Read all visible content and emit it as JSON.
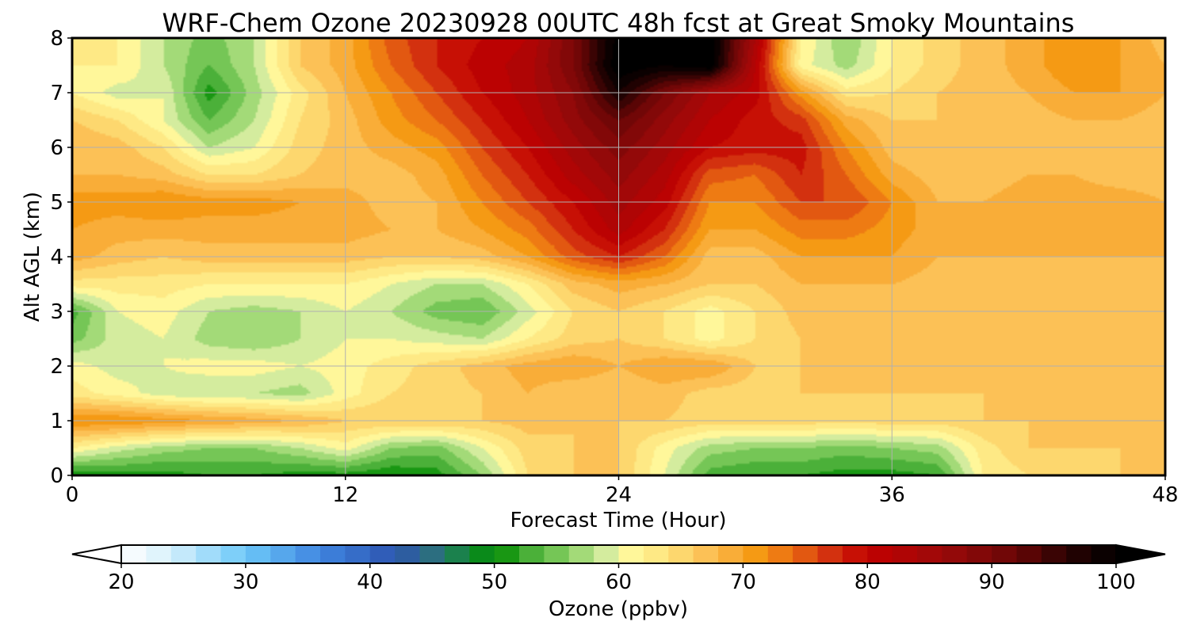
{
  "chart_data": {
    "type": "heatmap",
    "title": "WRF-Chem Ozone  20230928 00UTC 48h fcst at Great Smoky Mountains",
    "xlabel": "Forecast Time (Hour)",
    "ylabel": "Alt AGL (km)",
    "xlim": [
      0,
      48
    ],
    "ylim": [
      0,
      8
    ],
    "xticks": [
      0,
      12,
      24,
      36,
      48
    ],
    "yticks": [
      0,
      1,
      2,
      3,
      4,
      5,
      6,
      7,
      8
    ],
    "grid": true,
    "x_hours": [
      0,
      2,
      4,
      6,
      8,
      10,
      12,
      14,
      16,
      18,
      20,
      22,
      24,
      26,
      28,
      30,
      32,
      34,
      36,
      38,
      40,
      42,
      44,
      46,
      48
    ],
    "y_km": [
      0,
      0.5,
      1,
      1.5,
      2,
      2.5,
      3,
      3.5,
      4,
      4.5,
      5,
      5.5,
      6,
      6.5,
      7,
      7.5,
      8
    ],
    "z_ozone_ppbv": [
      [
        50,
        51,
        51,
        52,
        52,
        51,
        51,
        50,
        51,
        56,
        64,
        66,
        66,
        60,
        53,
        52,
        52,
        51,
        51,
        52,
        62,
        64,
        65,
        66,
        66
      ],
      [
        62,
        59,
        57,
        56,
        56,
        58,
        61,
        56,
        55,
        60,
        65,
        66,
        66,
        61,
        57,
        56,
        56,
        55,
        56,
        57,
        63,
        66,
        66,
        66,
        68
      ],
      [
        72,
        72,
        71,
        70,
        69,
        68,
        66,
        66,
        66,
        66,
        67,
        66,
        66,
        66,
        65,
        65,
        65,
        65,
        65,
        65,
        66,
        66,
        66,
        66,
        66
      ],
      [
        63,
        61,
        59,
        58,
        58,
        57,
        61,
        64,
        65,
        66,
        68,
        66,
        66,
        67,
        65,
        65,
        66,
        66,
        66,
        66,
        66,
        66,
        66,
        66,
        66
      ],
      [
        61,
        59,
        60,
        61,
        61,
        60,
        61,
        63,
        65,
        67,
        69,
        70,
        68,
        70,
        70,
        66,
        66,
        66,
        66,
        66,
        66,
        66,
        66,
        66,
        66
      ],
      [
        55,
        59,
        60,
        57,
        56,
        58,
        60,
        60,
        59,
        58,
        62,
        65,
        66,
        64,
        61,
        64,
        66,
        67,
        67,
        67,
        67,
        66,
        66,
        66,
        66
      ],
      [
        53,
        60,
        61,
        58,
        57,
        58,
        60,
        58,
        55,
        54,
        59,
        64,
        66,
        64,
        61,
        64,
        67,
        67,
        67,
        67,
        67,
        66,
        66,
        66,
        66
      ],
      [
        63,
        63,
        63,
        62,
        62,
        62,
        62,
        60,
        58,
        58,
        62,
        67,
        69,
        68,
        66,
        66,
        68,
        68,
        68,
        67,
        67,
        67,
        67,
        67,
        67
      ],
      [
        69,
        67,
        66,
        67,
        67,
        67,
        67,
        66,
        66,
        67,
        70,
        75,
        78,
        74,
        67,
        67,
        70,
        70,
        70,
        68,
        68,
        68,
        68,
        68,
        68
      ],
      [
        70,
        69,
        69,
        69,
        69,
        69,
        69,
        68,
        68,
        70,
        73,
        78,
        83,
        78,
        70,
        70,
        73,
        73,
        71,
        69,
        69,
        69,
        69,
        69,
        69
      ],
      [
        71,
        71,
        72,
        71,
        71,
        70,
        69,
        67,
        68,
        72,
        76,
        80,
        85,
        81,
        72,
        72,
        76,
        76,
        72,
        68,
        68,
        69,
        69,
        69,
        68
      ],
      [
        68,
        68,
        67,
        64,
        64,
        66,
        67,
        67,
        69,
        74,
        78,
        83,
        87,
        83,
        75,
        74,
        78,
        74,
        69,
        67,
        67,
        68,
        68,
        67,
        67
      ],
      [
        68,
        67,
        64,
        58,
        60,
        65,
        67,
        69,
        71,
        76,
        80,
        85,
        89,
        85,
        80,
        79,
        79,
        72,
        67,
        66,
        66,
        67,
        67,
        67,
        67
      ],
      [
        66,
        64,
        60,
        54,
        58,
        64,
        67,
        71,
        74,
        78,
        82,
        87,
        92,
        87,
        82,
        79,
        77,
        69,
        66,
        66,
        66,
        67,
        68,
        68,
        67
      ],
      [
        62,
        59,
        60,
        51,
        57,
        63,
        68,
        72,
        76,
        80,
        83,
        88,
        98,
        90,
        84,
        81,
        71,
        63,
        64,
        66,
        67,
        68,
        70,
        70,
        68
      ],
      [
        62,
        62,
        58,
        54,
        58,
        66,
        69,
        74,
        78,
        81,
        83,
        90,
        102,
        100,
        102,
        82,
        61,
        57,
        62,
        65,
        67,
        69,
        72,
        70,
        68
      ],
      [
        62,
        62,
        58,
        55,
        58,
        66,
        69,
        75,
        78,
        80,
        82,
        90,
        101,
        102,
        102,
        84,
        62,
        56,
        62,
        65,
        67,
        69,
        72,
        70,
        67
      ]
    ],
    "colorbar": {
      "label": "Ozone  (ppbv)",
      "min": 20,
      "max": 100,
      "step": 2,
      "extend": "both",
      "ticks": [
        20,
        30,
        40,
        50,
        60,
        70,
        80,
        90,
        100
      ]
    },
    "color_stops": [
      {
        "v": 20,
        "c": "#ffffff"
      },
      {
        "v": 24,
        "c": "#d6f0fb"
      },
      {
        "v": 30,
        "c": "#6cc8f8"
      },
      {
        "v": 36,
        "c": "#3f85e0"
      },
      {
        "v": 42,
        "c": "#2d55b0"
      },
      {
        "v": 45,
        "c": "#2c6e80"
      },
      {
        "v": 48,
        "c": "#138a33"
      },
      {
        "v": 50,
        "c": "#008a00"
      },
      {
        "v": 53,
        "c": "#4bb039"
      },
      {
        "v": 56,
        "c": "#8ad165"
      },
      {
        "v": 59,
        "c": "#d4ec9e"
      },
      {
        "v": 61,
        "c": "#fff79a"
      },
      {
        "v": 64,
        "c": "#fde27a"
      },
      {
        "v": 68,
        "c": "#fbb64a"
      },
      {
        "v": 71,
        "c": "#f59a14"
      },
      {
        "v": 74,
        "c": "#ea6c12"
      },
      {
        "v": 77,
        "c": "#d3310f"
      },
      {
        "v": 80,
        "c": "#c10000"
      },
      {
        "v": 86,
        "c": "#9c0a0a"
      },
      {
        "v": 92,
        "c": "#680606"
      },
      {
        "v": 96,
        "c": "#2a0303"
      },
      {
        "v": 100,
        "c": "#000000"
      }
    ]
  }
}
